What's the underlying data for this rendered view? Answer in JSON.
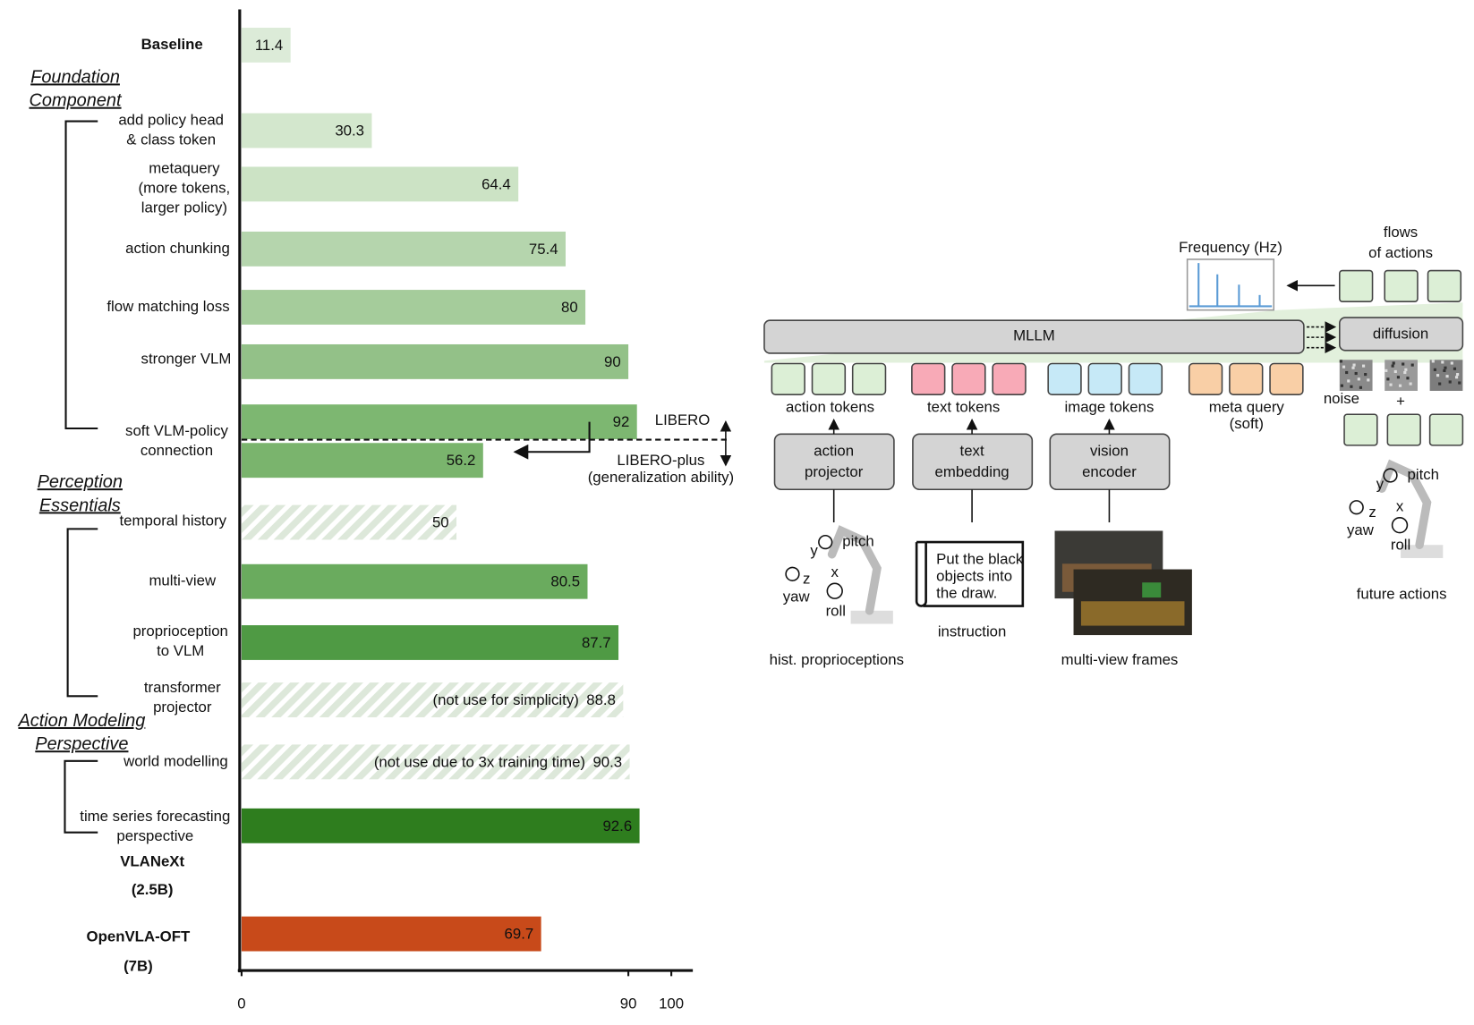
{
  "chart_data": {
    "type": "hbar",
    "xlim": [
      0,
      105
    ],
    "xticks": [
      0,
      90,
      100
    ],
    "bars": [
      {
        "label": [
          "Baseline"
        ],
        "label_color": "#3a8a22",
        "value": 11.4,
        "color": "#dcebd8",
        "hatch": false
      },
      {
        "label": [
          "add policy head",
          "& class token"
        ],
        "value": 30.3,
        "color": "#d3e7cd",
        "hatch": false
      },
      {
        "label": [
          "metaquery",
          "(more tokens,",
          "larger policy)"
        ],
        "value": 64.4,
        "color": "#cce3c5",
        "hatch": false
      },
      {
        "label": [
          "action chunking"
        ],
        "value": 75.4,
        "color": "#b5d5ad",
        "hatch": false
      },
      {
        "label": [
          "flow matching loss"
        ],
        "value": 80,
        "color": "#a5cc9b",
        "hatch": false
      },
      {
        "label": [
          "stronger VLM"
        ],
        "value": 90,
        "color": "#93c188",
        "hatch": false
      },
      {
        "label": [
          "soft VLM-policy",
          "connection"
        ],
        "value": 92,
        "color": "#7db771",
        "hatch": false
      },
      {
        "label": null,
        "value": 56.2,
        "color": "#7ab46d",
        "hatch": false
      },
      {
        "label": [
          "temporal history"
        ],
        "value": 50,
        "color": "#dde8da",
        "hatch": true
      },
      {
        "label": [
          "multi-view"
        ],
        "value": 80.5,
        "color": "#6aab5e",
        "hatch": false
      },
      {
        "label": [
          "proprioception",
          "to VLM"
        ],
        "value": 87.7,
        "color": "#4f9a44",
        "hatch": false
      },
      {
        "label": [
          "transformer",
          "projector"
        ],
        "value": 88.8,
        "color": "#dde8da",
        "hatch": true,
        "note": "(not use for simplicity)"
      },
      {
        "label": [
          "world modelling"
        ],
        "value": 90.3,
        "color": "#dde8da",
        "hatch": true,
        "note": "(not use due to 3x training time)"
      },
      {
        "label": [
          "time series forecasting",
          "perspective"
        ],
        "value": 92.6,
        "color": "#2e7d1e",
        "hatch": false
      },
      {
        "label": [
          "OpenVLA-OFT",
          "(7B)"
        ],
        "label_color": "#c84a1a",
        "value": 69.7,
        "color": "#c84a1a",
        "hatch": false
      }
    ],
    "sections": [
      [
        "Foundation",
        "Component"
      ],
      [
        "Perception",
        "Essentials"
      ],
      [
        "Action Modeling",
        "Perspective"
      ]
    ],
    "model_label": [
      "VLANeXt",
      "(2.5B)"
    ],
    "benchmarks": {
      "upper": "LIBERO",
      "lower": "LIBERO-plus",
      "lower_note": "(generalization ability)"
    }
  },
  "diagram": {
    "frequency_label": "Frequency (Hz)",
    "flows_label": [
      "flows",
      "of actions"
    ],
    "mllm": "MLLM",
    "diffusion": "diffusion",
    "token_groups": [
      "action tokens",
      "text tokens",
      "image tokens",
      "meta query"
    ],
    "meta_note": "(soft)",
    "noise": "noise",
    "plus": "+",
    "encoders": [
      [
        "action",
        "projector"
      ],
      [
        "text",
        "embedding"
      ],
      [
        "vision",
        "encoder"
      ]
    ],
    "inputs": [
      "hist. proprioceptions",
      "instruction",
      "multi-view frames"
    ],
    "instruction_text": [
      "Put the black",
      "objects into",
      "the draw."
    ],
    "left_axes": [
      "pitch",
      "y",
      "x",
      "z",
      "yaw",
      "roll"
    ],
    "right_axes": [
      "pitch",
      "y",
      "x",
      "z",
      "yaw",
      "roll"
    ],
    "output": "future actions"
  }
}
